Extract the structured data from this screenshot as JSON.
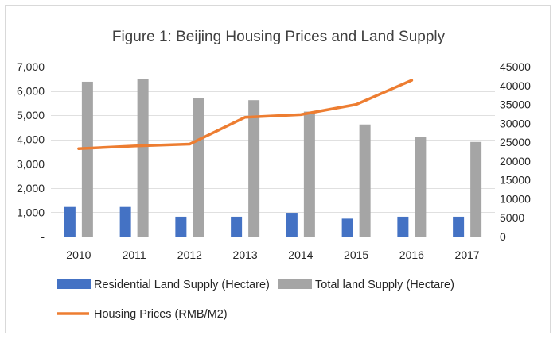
{
  "chart_data": {
    "type": "bar",
    "title": "Figure 1: Beijing Housing Prices and Land Supply",
    "categories": [
      "2010",
      "2011",
      "2012",
      "2013",
      "2014",
      "2015",
      "2016",
      "2017"
    ],
    "left_axis": {
      "ylim": [
        0,
        7000
      ],
      "ticks": [
        0,
        1000,
        2000,
        3000,
        4000,
        5000,
        6000,
        7000
      ],
      "tick_labels": [
        "-",
        "1,000",
        "2,000",
        "3,000",
        "4,000",
        "5,000",
        "6,000",
        "7,000"
      ]
    },
    "right_axis": {
      "ylim": [
        0,
        45000
      ],
      "ticks": [
        0,
        5000,
        10000,
        15000,
        20000,
        25000,
        30000,
        35000,
        40000,
        45000
      ],
      "tick_labels": [
        "0",
        "5000",
        "10000",
        "15000",
        "20000",
        "25000",
        "30000",
        "35000",
        "40000",
        "45000"
      ]
    },
    "series": [
      {
        "name": "Residential  Land Supply  (Hectare)",
        "type": "bar",
        "axis": "left",
        "color": "#4472C4",
        "values": [
          1220,
          1220,
          820,
          820,
          980,
          740,
          820,
          820
        ]
      },
      {
        "name": "Total land Supply  (Hectare)",
        "type": "bar",
        "axis": "left",
        "color": "#A5A5A5",
        "values": [
          6380,
          6500,
          5700,
          5620,
          5150,
          4620,
          4100,
          3900
        ]
      },
      {
        "name": "Housing  Prices (RMB/M2)",
        "type": "line",
        "axis": "right",
        "color": "#ED7D31",
        "values": [
          23300,
          24000,
          24500,
          31600,
          32300,
          35000,
          41400,
          null
        ]
      }
    ],
    "grid": true,
    "legend_position": "bottom"
  }
}
